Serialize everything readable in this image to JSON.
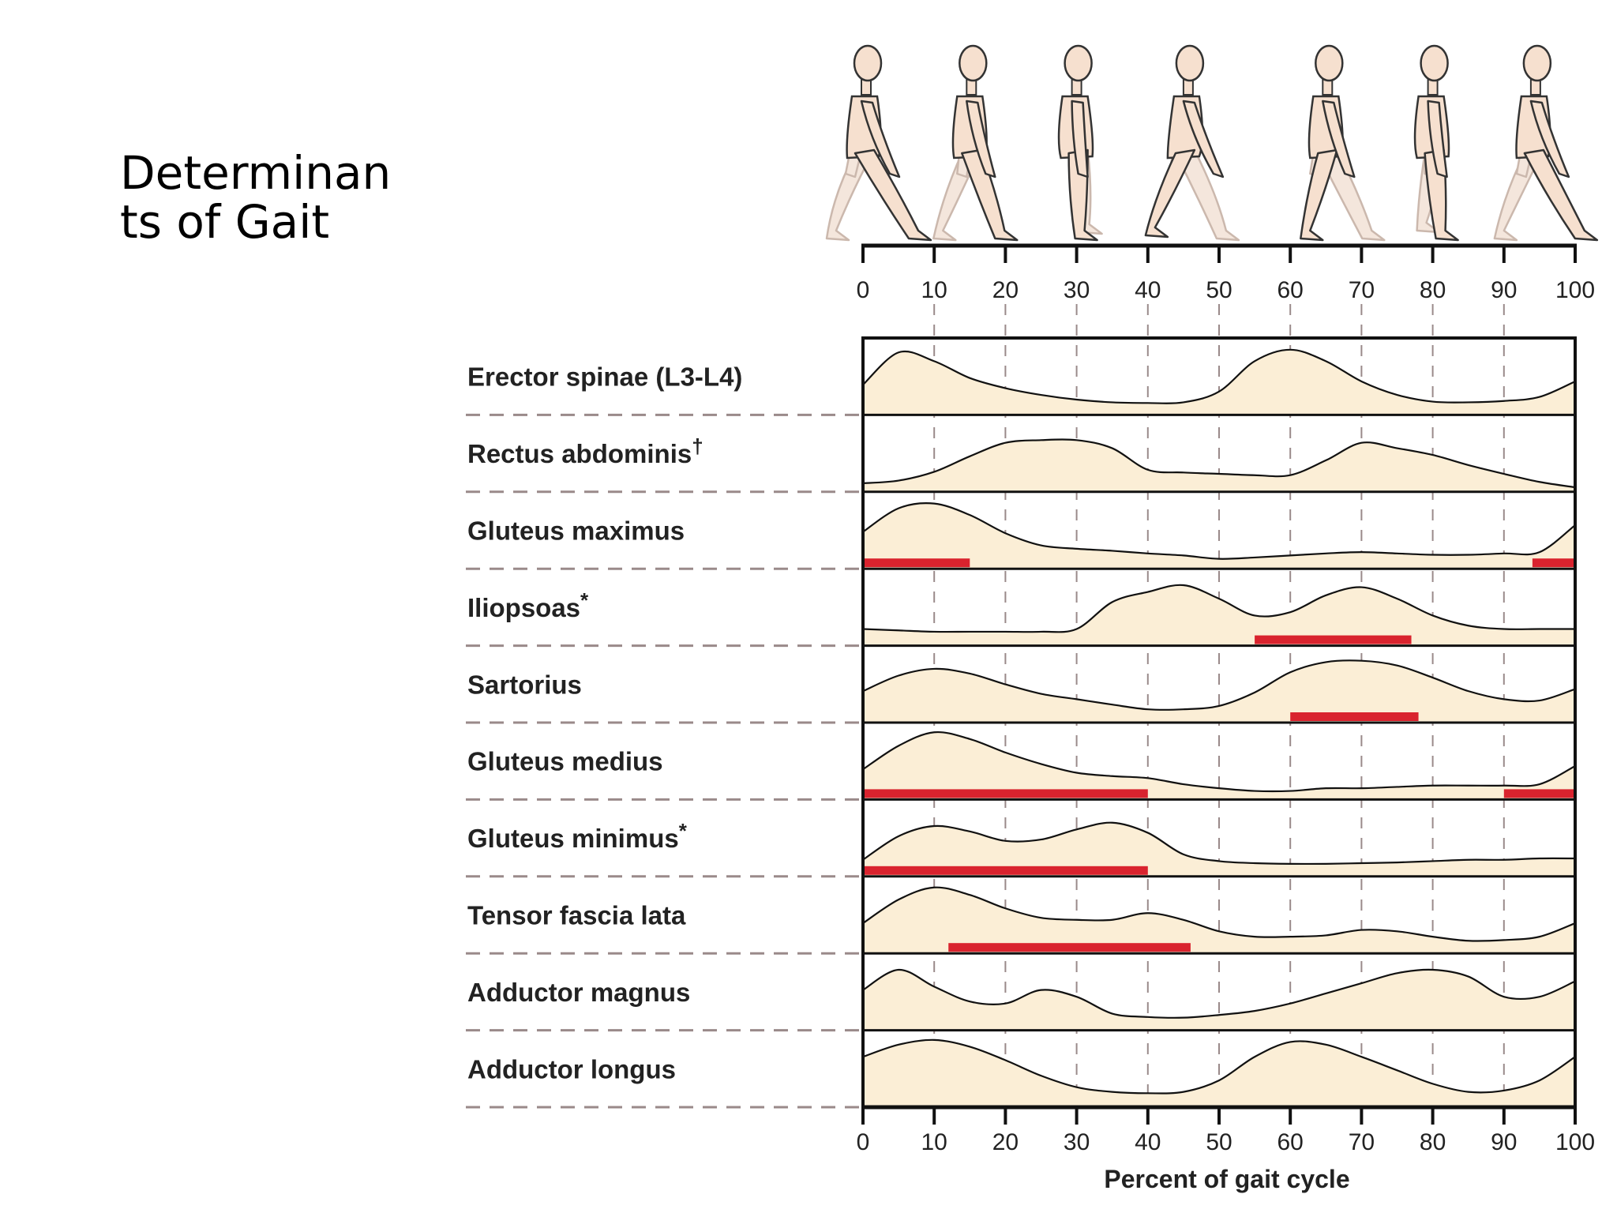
{
  "slide": {
    "title": "Determinants of Gait"
  },
  "colors": {
    "fill": "#fbeed6",
    "bar": "#d9232e",
    "line": "#111111",
    "guide": "#9a8a8a"
  },
  "chart_data": {
    "type": "area",
    "xlabel": "Percent of gait cycle",
    "xlim": [
      0,
      100
    ],
    "xticks": [
      0,
      10,
      20,
      30,
      40,
      50,
      60,
      70,
      80,
      90,
      100
    ],
    "x": [
      0,
      5,
      10,
      15,
      20,
      25,
      30,
      35,
      40,
      45,
      50,
      55,
      60,
      65,
      70,
      75,
      80,
      85,
      90,
      95,
      100
    ],
    "series": [
      {
        "name": "Erector spinae (L3-L4)",
        "superscript": "",
        "values": [
          0.4,
          0.88,
          0.75,
          0.5,
          0.35,
          0.25,
          0.18,
          0.14,
          0.13,
          0.14,
          0.3,
          0.75,
          0.92,
          0.75,
          0.45,
          0.25,
          0.15,
          0.14,
          0.16,
          0.22,
          0.45
        ],
        "bars": []
      },
      {
        "name": "Rectus abdominis",
        "superscript": "†",
        "values": [
          0.08,
          0.12,
          0.25,
          0.48,
          0.68,
          0.72,
          0.72,
          0.6,
          0.28,
          0.24,
          0.22,
          0.2,
          0.2,
          0.42,
          0.68,
          0.6,
          0.5,
          0.35,
          0.22,
          0.1,
          0.02
        ],
        "bars": []
      },
      {
        "name": "Gluteus maximus",
        "superscript": "",
        "values": [
          0.5,
          0.85,
          0.92,
          0.75,
          0.48,
          0.3,
          0.25,
          0.22,
          0.18,
          0.15,
          0.1,
          0.12,
          0.15,
          0.18,
          0.2,
          0.18,
          0.16,
          0.16,
          0.18,
          0.2,
          0.6
        ],
        "bars": [
          [
            0,
            15
          ],
          [
            94,
            100
          ]
        ]
      },
      {
        "name": "Iliopsoas",
        "superscript": "*",
        "values": [
          0.2,
          0.18,
          0.16,
          0.16,
          0.16,
          0.16,
          0.2,
          0.6,
          0.75,
          0.85,
          0.65,
          0.4,
          0.45,
          0.7,
          0.82,
          0.65,
          0.4,
          0.25,
          0.2,
          0.2,
          0.2
        ],
        "bars": [
          [
            55,
            77
          ]
        ]
      },
      {
        "name": "Sartorius",
        "superscript": "",
        "values": [
          0.42,
          0.65,
          0.75,
          0.68,
          0.52,
          0.38,
          0.3,
          0.22,
          0.15,
          0.15,
          0.2,
          0.4,
          0.7,
          0.85,
          0.87,
          0.8,
          0.62,
          0.42,
          0.3,
          0.28,
          0.45
        ],
        "bars": [
          [
            60,
            78
          ]
        ]
      },
      {
        "name": "Gluteus medius",
        "superscript": "",
        "values": [
          0.4,
          0.75,
          0.95,
          0.85,
          0.65,
          0.48,
          0.35,
          0.3,
          0.27,
          0.18,
          0.12,
          0.08,
          0.08,
          0.12,
          0.12,
          0.14,
          0.16,
          0.16,
          0.16,
          0.18,
          0.45
        ],
        "bars": [
          [
            0,
            40
          ],
          [
            90,
            100
          ]
        ]
      },
      {
        "name": "Gluteus minimus",
        "superscript": "*",
        "values": [
          0.2,
          0.55,
          0.7,
          0.62,
          0.48,
          0.5,
          0.65,
          0.75,
          0.6,
          0.28,
          0.18,
          0.15,
          0.14,
          0.14,
          0.15,
          0.16,
          0.18,
          0.2,
          0.2,
          0.22,
          0.22
        ],
        "bars": [
          [
            0,
            40
          ]
        ]
      },
      {
        "name": "Tensor fascia lata",
        "superscript": "",
        "values": [
          0.4,
          0.75,
          0.93,
          0.82,
          0.62,
          0.48,
          0.45,
          0.45,
          0.55,
          0.45,
          0.28,
          0.2,
          0.2,
          0.22,
          0.3,
          0.28,
          0.2,
          0.14,
          0.15,
          0.2,
          0.4
        ],
        "bars": [
          [
            12,
            46
          ]
        ]
      },
      {
        "name": "Adductor magnus",
        "superscript": "",
        "values": [
          0.55,
          0.85,
          0.6,
          0.38,
          0.35,
          0.55,
          0.45,
          0.2,
          0.15,
          0.14,
          0.18,
          0.24,
          0.35,
          0.5,
          0.65,
          0.8,
          0.85,
          0.75,
          0.45,
          0.45,
          0.68
        ],
        "bars": []
      },
      {
        "name": "Adductor longus",
        "superscript": "",
        "values": [
          0.7,
          0.88,
          0.95,
          0.85,
          0.65,
          0.42,
          0.25,
          0.18,
          0.16,
          0.18,
          0.35,
          0.7,
          0.92,
          0.88,
          0.7,
          0.5,
          0.3,
          0.18,
          0.2,
          0.35,
          0.7
        ],
        "bars": []
      }
    ],
    "figures": [
      {
        "x": 0,
        "pose": "heel-strike"
      },
      {
        "x": 15,
        "pose": "loading"
      },
      {
        "x": 30,
        "pose": "midstance"
      },
      {
        "x": 45,
        "pose": "terminal-stance"
      },
      {
        "x": 65,
        "pose": "toe-off"
      },
      {
        "x": 80,
        "pose": "midswing"
      },
      {
        "x": 94,
        "pose": "terminal-swing"
      }
    ]
  }
}
